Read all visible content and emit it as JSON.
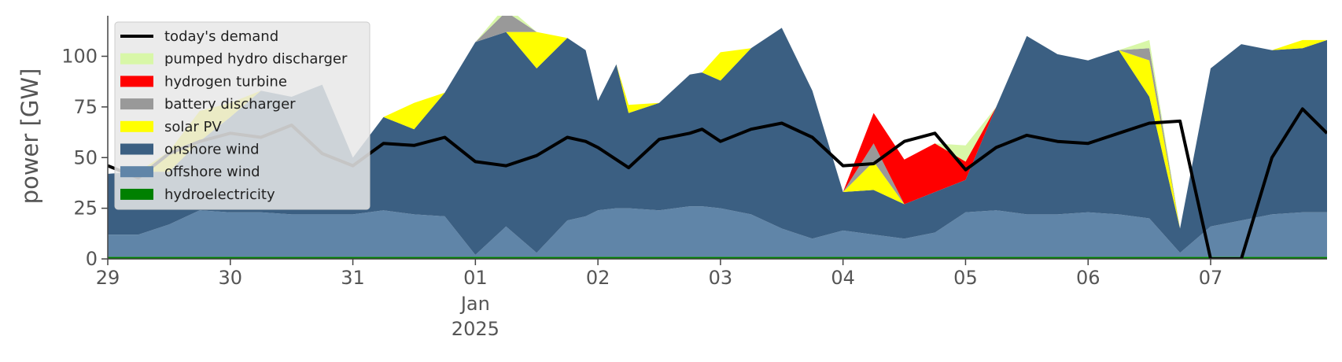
{
  "chart_data": {
    "type": "area",
    "title": "",
    "xlabel": "",
    "ylabel": "power [GW]",
    "ylim": [
      0,
      120
    ],
    "yticks": [
      0,
      25,
      50,
      75,
      100
    ],
    "xlim": [
      0,
      9.95
    ],
    "xtick_labels": [
      "29",
      "30",
      "31",
      "01",
      "02",
      "03",
      "04",
      "05",
      "06",
      "07"
    ],
    "xtick_sublabels": [
      "Jan",
      "2025"
    ],
    "x_unit": "days from 29 Dec 2024",
    "grid": false,
    "legend_position": "top-left",
    "colors": {
      "hydroelectricity": "#008000",
      "offshore wind": "#6085a8",
      "onshore wind": "#3b5f82",
      "solar PV": "#ffff00",
      "battery discharger": "#999999",
      "hydrogen turbine": "#ff0000",
      "pumped hydro discharger": "#d8f7a8",
      "today's demand": "#000000"
    },
    "x": [
      0,
      0.25,
      0.5,
      0.75,
      1,
      1.25,
      1.5,
      1.75,
      2,
      2.25,
      2.5,
      2.75,
      3,
      3.25,
      3.5,
      3.75,
      3.9,
      4,
      4.15,
      4.25,
      4.5,
      4.75,
      4.85,
      5,
      5.25,
      5.5,
      5.75,
      6,
      6.25,
      6.5,
      6.75,
      7,
      7.25,
      7.5,
      7.75,
      8,
      8.25,
      8.5,
      8.75,
      9,
      9.25,
      9.5,
      9.75,
      9.95
    ],
    "series": [
      {
        "name": "hydroelectricity",
        "values": [
          1,
          1,
          1,
          1,
          1,
          1,
          1,
          1,
          1,
          1,
          1,
          1,
          1,
          1,
          1,
          1,
          1,
          1,
          1,
          1,
          1,
          1,
          1,
          1,
          1,
          1,
          1,
          1,
          1,
          1,
          1,
          1,
          1,
          1,
          1,
          1,
          1,
          1,
          1,
          1,
          1,
          1,
          1,
          1
        ]
      },
      {
        "name": "offshore wind",
        "values": [
          11,
          11,
          16,
          23,
          22,
          22,
          21,
          21,
          21,
          23,
          21,
          20,
          1,
          15,
          2,
          18,
          20,
          23,
          24,
          24,
          23,
          25,
          25,
          24,
          21,
          14,
          9,
          13,
          11,
          9,
          12,
          22,
          23,
          21,
          21,
          22,
          21,
          19,
          2,
          15,
          18,
          21,
          22,
          22
        ]
      },
      {
        "name": "onshore wind",
        "values": [
          30,
          31,
          26,
          34,
          47,
          60,
          58,
          64,
          28,
          46,
          42,
          61,
          105,
          96,
          91,
          90,
          82,
          54,
          71,
          47,
          53,
          65,
          66,
          63,
          82,
          99,
          73,
          19,
          22,
          17,
          20,
          16,
          51,
          88,
          79,
          75,
          81,
          60,
          12,
          78,
          87,
          81,
          81,
          85
        ]
      },
      {
        "name": "solar PV",
        "values": [
          0,
          0,
          10,
          15,
          7,
          0,
          0,
          0,
          0,
          0,
          13,
          0,
          0,
          0,
          18,
          0,
          0,
          0,
          0,
          4,
          0,
          0,
          0,
          14,
          0,
          0,
          0,
          0,
          14,
          0,
          0,
          0,
          0,
          0,
          0,
          0,
          0,
          18,
          0,
          0,
          0,
          0,
          4,
          0
        ]
      },
      {
        "name": "battery discharger",
        "values": [
          0,
          0,
          0,
          0,
          0,
          0,
          0,
          0,
          0,
          0,
          0,
          0,
          0,
          10,
          0,
          0,
          0,
          0,
          0,
          0,
          0,
          0,
          0,
          0,
          0,
          0,
          0,
          0,
          9,
          0,
          0,
          0,
          0,
          0,
          0,
          0,
          0,
          6,
          0,
          0,
          0,
          0,
          0,
          0
        ]
      },
      {
        "name": "hydrogen turbine",
        "values": [
          0,
          0,
          0,
          0,
          0,
          0,
          0,
          0,
          0,
          0,
          0,
          0,
          0,
          0,
          0,
          0,
          0,
          0,
          0,
          0,
          0,
          0,
          0,
          0,
          0,
          0,
          0,
          0,
          15,
          22,
          24,
          9,
          0,
          0,
          0,
          0,
          0,
          0,
          0,
          0,
          0,
          0,
          0,
          0
        ]
      },
      {
        "name": "pumped hydro discharger",
        "values": [
          0,
          0,
          0,
          0,
          0,
          0,
          0,
          0,
          0,
          0,
          0,
          0,
          0,
          3,
          0,
          0,
          0,
          0,
          0,
          0,
          0,
          0,
          0,
          0,
          0,
          0,
          0,
          0,
          0,
          0,
          0,
          8,
          0,
          0,
          0,
          0,
          0,
          4,
          0,
          0,
          0,
          0,
          0,
          0
        ]
      },
      {
        "name": "today's demand",
        "values": [
          46,
          40,
          52,
          58,
          62,
          60,
          66,
          52,
          46,
          57,
          56,
          60,
          48,
          46,
          51,
          60,
          58,
          55,
          49,
          45,
          59,
          62,
          64,
          58,
          64,
          67,
          60,
          46,
          47,
          58,
          62,
          44,
          55,
          61,
          58,
          57,
          62,
          67,
          68,
          0,
          0,
          50,
          74,
          62
        ]
      }
    ]
  },
  "legend": {
    "items": [
      {
        "label": "today's demand",
        "color": "#000000",
        "kind": "line"
      },
      {
        "label": "pumped hydro discharger",
        "color": "#d8f7a8",
        "kind": "patch"
      },
      {
        "label": "hydrogen turbine",
        "color": "#ff0000",
        "kind": "patch"
      },
      {
        "label": "battery discharger",
        "color": "#999999",
        "kind": "patch"
      },
      {
        "label": "solar PV",
        "color": "#ffff00",
        "kind": "patch"
      },
      {
        "label": "onshore wind",
        "color": "#3b5f82",
        "kind": "patch"
      },
      {
        "label": "offshore wind",
        "color": "#6085a8",
        "kind": "patch"
      },
      {
        "label": "hydroelectricity",
        "color": "#008000",
        "kind": "patch"
      }
    ]
  }
}
